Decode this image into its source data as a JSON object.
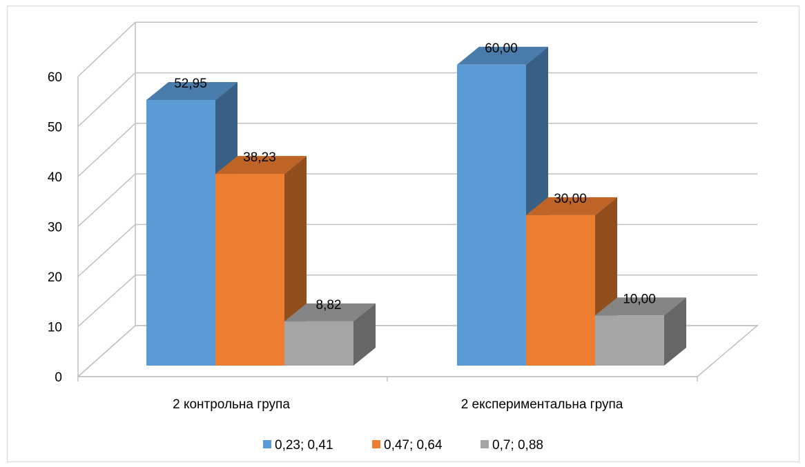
{
  "chart_data": {
    "type": "bar",
    "subtype": "3d-clustered-column",
    "title": "",
    "xlabel": "",
    "ylabel": "",
    "ylim": [
      0,
      60
    ],
    "yticks": [
      "0",
      "10",
      "20",
      "30",
      "40",
      "50",
      "60"
    ],
    "categories": [
      "2 контрольна група",
      "2 експериментальна група"
    ],
    "series": [
      {
        "name": "0,23; 0,41",
        "values": [
          52.95,
          60.0
        ],
        "labels": [
          "52,95",
          "60,00"
        ],
        "color": "#5b9bd5"
      },
      {
        "name": "0,47; 0,64",
        "values": [
          38.23,
          30.0
        ],
        "labels": [
          "38,23",
          "30,00"
        ],
        "color": "#ed7d31"
      },
      {
        "name": "0,7; 0,88",
        "values": [
          8.82,
          10.0
        ],
        "labels": [
          "8,82",
          "10,00"
        ],
        "color": "#a5a5a5"
      }
    ],
    "grid": true,
    "legend": "bottom"
  }
}
